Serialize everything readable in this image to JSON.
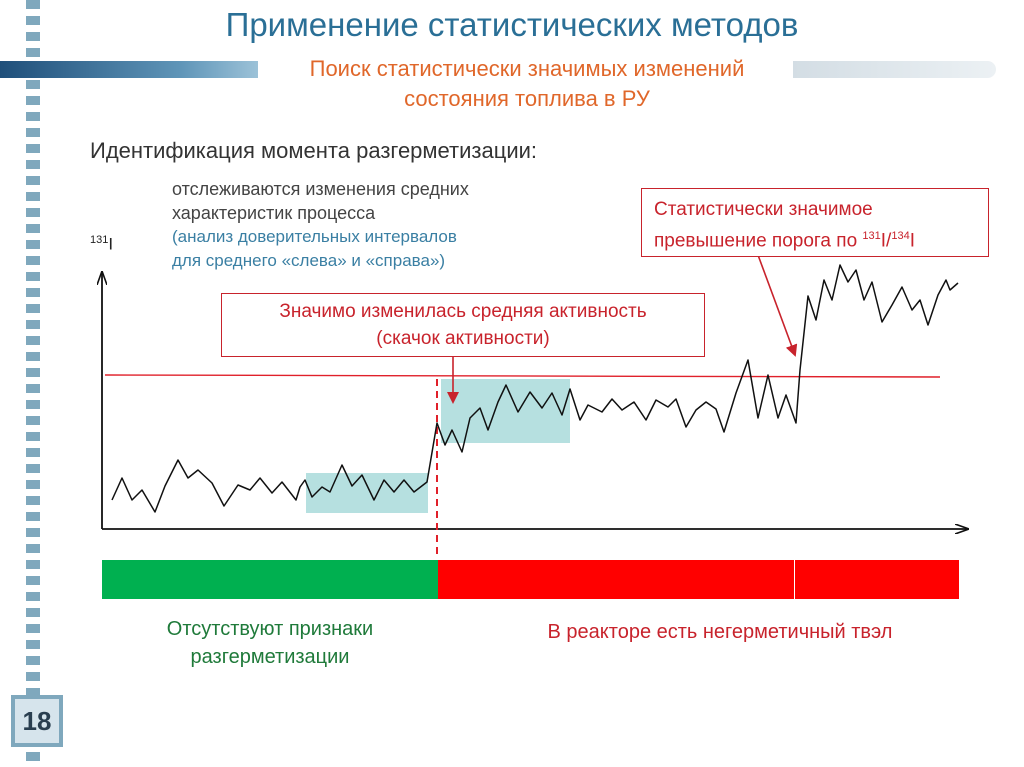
{
  "slide": {
    "title": "Применение статистических методов",
    "subtitle_line1": "Поиск статистически значимых изменений",
    "subtitle_line2": "состояния топлива в РУ",
    "heading": "Идентификация момента разгерметизации:",
    "note_line1": "отслеживаются изменения средних",
    "note_line2": "характеристик процесса",
    "note_line3": "(анализ доверительных интервалов",
    "note_line4": "для среднего «слева» и «справа»)",
    "slide_number": "18"
  },
  "chart": {
    "y_label_sup": "131",
    "y_label_main": "I",
    "callout_right_line1": "Статистически значимое",
    "callout_right_line2": "превышение порога по",
    "callout_right_sup1": "131",
    "callout_right_mid": "I/",
    "callout_right_sup2": "134",
    "callout_right_end": "I",
    "callout_mid_line1": "Значимо изменилась средняя активность",
    "callout_mid_line2": "(скачок активности)",
    "colors": {
      "signal": "#111111",
      "threshold": "#e0202a",
      "interval_fill": "#9dd6d6",
      "change_marker": "#e0202a",
      "ok_state": "#00b050",
      "leak_state": "#ff0000"
    }
  },
  "status": {
    "ok_line1": "Отсутствуют признаки",
    "ok_line2": "разгерметизации",
    "leak_text": "В реакторе есть негерметичный твэл"
  }
}
